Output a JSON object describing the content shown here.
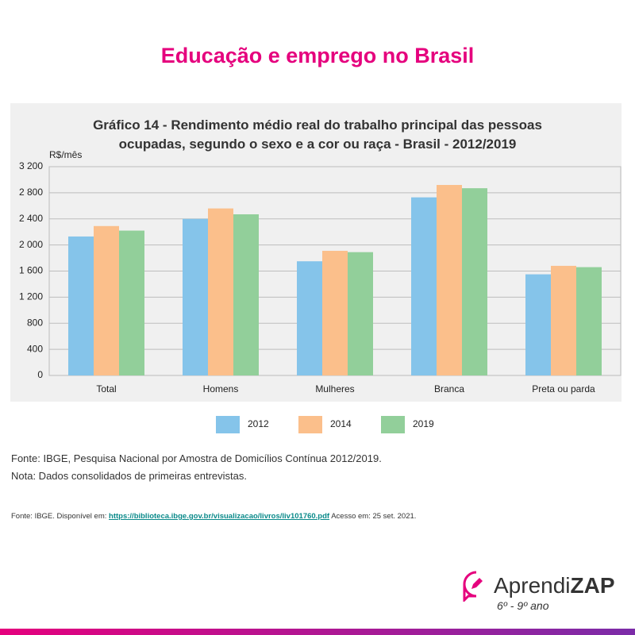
{
  "page": {
    "title": "Educação e emprego no Brasil"
  },
  "chart_data": {
    "type": "bar",
    "title": "Gráfico 14 - Rendimento médio real do trabalho principal das pessoas ocupadas, segundo o sexo e a cor ou raça - Brasil - 2012/2019",
    "y_label": "R$/mês",
    "categories": [
      "Total",
      "Homens",
      "Mulheres",
      "Branca",
      "Preta ou parda"
    ],
    "series": [
      {
        "name": "2012",
        "color": "#85c4ea",
        "values": [
          2130,
          2400,
          1750,
          2730,
          1550
        ]
      },
      {
        "name": "2014",
        "color": "#fbbf8b",
        "values": [
          2290,
          2560,
          1910,
          2920,
          1680
        ]
      },
      {
        "name": "2019",
        "color": "#92cf9a",
        "values": [
          2220,
          2470,
          1890,
          2870,
          1660
        ]
      }
    ],
    "ylim": [
      0,
      3200
    ],
    "yticks": [
      0,
      400,
      800,
      {
        "value": 1200,
        "label": "1 200"
      },
      {
        "value": 1600,
        "label": "1 600"
      },
      {
        "value": 2000,
        "label": "2 000"
      },
      {
        "value": 2400,
        "label": "2 400"
      },
      {
        "value": 2800,
        "label": "2 800"
      },
      {
        "value": 3200,
        "label": "3 200"
      }
    ],
    "grid": true,
    "legend": "bottom"
  },
  "notes": [
    "Fonte: IBGE, Pesquisa Nacional por Amostra de Domicílios Contínua 2012/2019.",
    "Nota: Dados consolidados de primeiras entrevistas."
  ],
  "source": {
    "prefix": "Fonte: IBGE. Disponível em:",
    "url": "https://biblioteca.ibge.gov.br/visualizacao/livros/liv101760.pdf",
    "suffix": "Acesso em: 25 set. 2021."
  },
  "brand": {
    "name_light": "Aprendi",
    "name_bold": "ZAP",
    "subtitle": "6º - 9º ano"
  }
}
